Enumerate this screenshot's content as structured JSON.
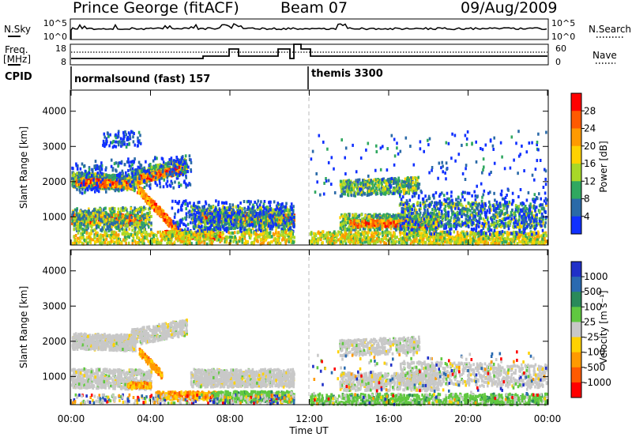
{
  "header": {
    "station": "Prince George (fitACF)",
    "beam": "Beam 07",
    "date": "09/Aug/2009"
  },
  "strip": {
    "nsky_label": "N.Sky",
    "nsky_ticks": [
      "10^5",
      "10^0"
    ],
    "nsearch_label": "N.Search",
    "nsearch_ticks": [
      "10^5",
      "10^0"
    ],
    "freq_label_1": "Freq.",
    "freq_label_2": "[MHz]",
    "freq_ticks": [
      "18",
      "8"
    ],
    "nave_label": "Nave",
    "nave_ticks": [
      "60",
      "0"
    ],
    "cpid_label": "CPID",
    "cpid_segments": [
      {
        "label": "normalsound (fast) 157",
        "start_hour": 0
      },
      {
        "label": "themis 3300",
        "start_hour": 12
      }
    ]
  },
  "chart_data": [
    {
      "type": "heatmap",
      "quantity": "Power",
      "ylabel": "Slant Range [km]",
      "xlabel": "Time UT",
      "x_ticks": [
        "00:00",
        "04:00",
        "08:00",
        "12:00",
        "16:00",
        "20:00",
        "00:00"
      ],
      "x_range_hours": [
        0,
        24
      ],
      "y_ticks": [
        1000,
        2000,
        3000,
        4000
      ],
      "ylim": [
        200,
        4600
      ],
      "colorbar_label": "Power [dB]",
      "colorbar_ticks": [
        "28",
        "24",
        "20",
        "16",
        "12",
        "8",
        "4"
      ],
      "colorbar_colors": [
        "#ff0000",
        "#ff5a00",
        "#ff9a00",
        "#ffd200",
        "#a8d828",
        "#30a860",
        "#2a6aa8",
        "#1030ff"
      ]
    },
    {
      "type": "heatmap",
      "quantity": "Velocity",
      "ylabel": "Slant Range [km]",
      "xlabel": "Time UT",
      "x_ticks": [
        "00:00",
        "04:00",
        "08:00",
        "12:00",
        "16:00",
        "20:00",
        "00:00"
      ],
      "x_range_hours": [
        0,
        24
      ],
      "y_ticks": [
        1000,
        2000,
        3000,
        4000
      ],
      "ylim": [
        200,
        4600
      ],
      "colorbar_label": "Velocity [m s⁻¹]",
      "colorbar_ticks": [
        "1000",
        "500",
        "100",
        "25",
        "-25",
        "-100",
        "-500",
        "-1000"
      ],
      "colorbar_colors": [
        "#2030c8",
        "#2a6ab0",
        "#2a8a5a",
        "#60c840",
        "#c8c8c8",
        "#ffd200",
        "#ff9a00",
        "#ff5a00",
        "#ff0000"
      ]
    }
  ],
  "colors": {
    "frame": "#000000",
    "ground_scatter": "#c8c8c8"
  }
}
